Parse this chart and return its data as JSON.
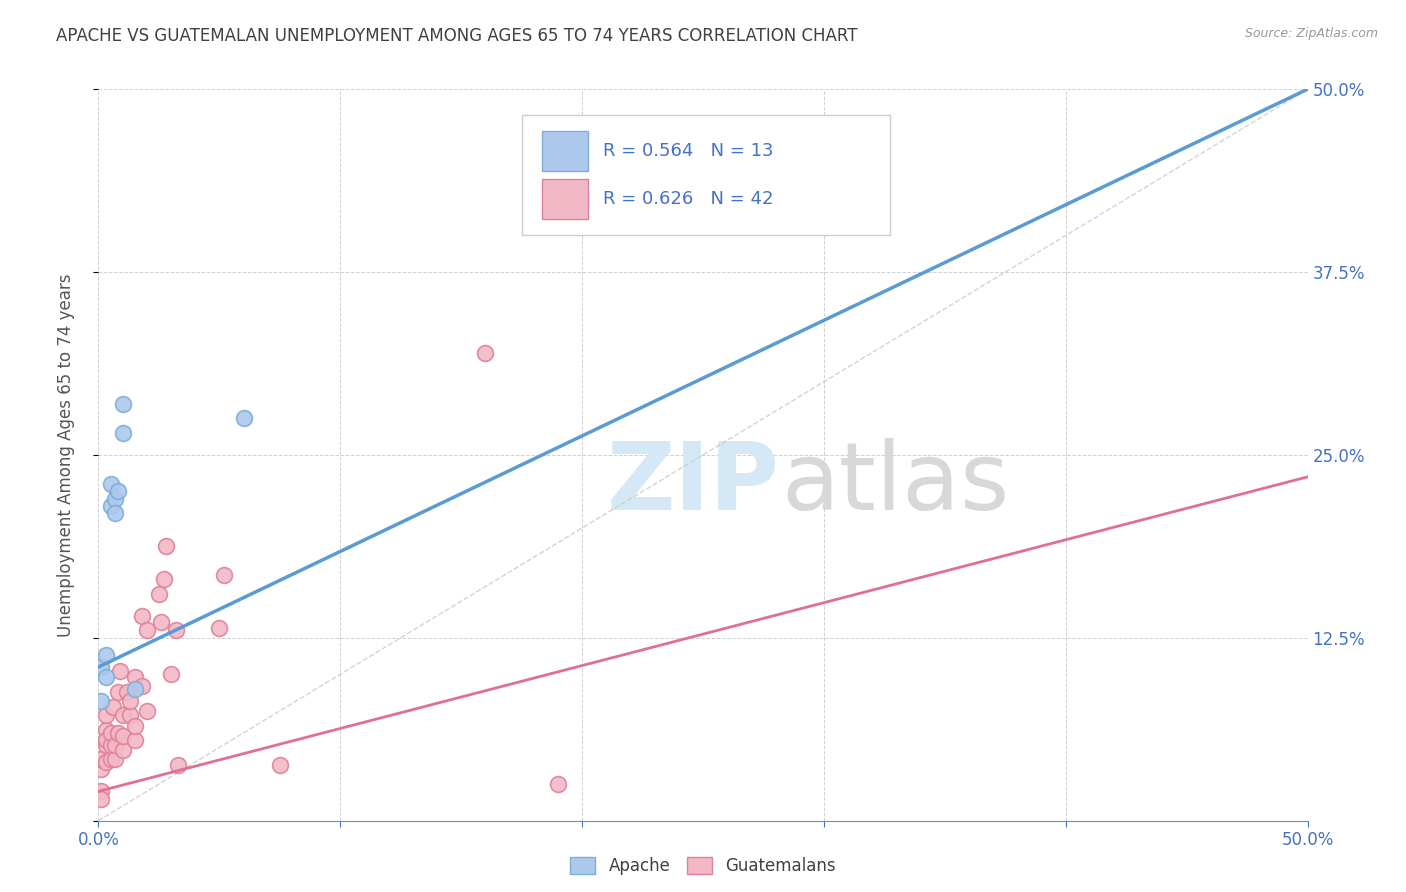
{
  "title": "APACHE VS GUATEMALAN UNEMPLOYMENT AMONG AGES 65 TO 74 YEARS CORRELATION CHART",
  "source": "Source: ZipAtlas.com",
  "ylabel": "Unemployment Among Ages 65 to 74 years",
  "xlim": [
    0.0,
    0.5
  ],
  "ylim": [
    0.0,
    0.5
  ],
  "xticks": [
    0.0,
    0.1,
    0.2,
    0.3,
    0.4,
    0.5
  ],
  "yticks": [
    0.0,
    0.125,
    0.25,
    0.375,
    0.5
  ],
  "xticklabels_visible": [
    "0.0%",
    "50.0%"
  ],
  "xticklabels_visible_pos": [
    0.0,
    0.5
  ],
  "yticklabels_right": [
    "",
    "12.5%",
    "25.0%",
    "37.5%",
    "50.0%"
  ],
  "apache_color": "#adc8ed",
  "apache_edge_color": "#7bafd4",
  "guatemalan_color": "#f2b8c6",
  "guatemalan_edge_color": "#e0809a",
  "apache_line_color": "#5b9bd5",
  "guatemalan_line_color": "#e07090",
  "diagonal_color": "#c8c8c8",
  "bottom_legend_apache": "Apache",
  "bottom_legend_guatemalan": "Guatemalans",
  "background_color": "#ffffff",
  "grid_color": "#d0d0d0",
  "title_color": "#404040",
  "axis_label_color": "#555555",
  "tick_color_right": "#4472c4",
  "tick_color_bottom": "#4472c4",
  "marker_size": 130,
  "marker_linewidth": 1.2,
  "apache_line_x0": 0.0,
  "apache_line_y0": 0.105,
  "apache_line_x1": 0.5,
  "apache_line_y1": 0.5,
  "guatemalan_line_x0": 0.0,
  "guatemalan_line_y0": 0.02,
  "guatemalan_line_x1": 0.5,
  "guatemalan_line_y1": 0.235,
  "apache_points": [
    [
      0.001,
      0.105
    ],
    [
      0.001,
      0.082
    ],
    [
      0.003,
      0.113
    ],
    [
      0.003,
      0.098
    ],
    [
      0.005,
      0.215
    ],
    [
      0.005,
      0.23
    ],
    [
      0.007,
      0.22
    ],
    [
      0.007,
      0.21
    ],
    [
      0.008,
      0.225
    ],
    [
      0.01,
      0.285
    ],
    [
      0.01,
      0.265
    ],
    [
      0.015,
      0.09
    ],
    [
      0.06,
      0.275
    ]
  ],
  "guatemalan_points": [
    [
      0.001,
      0.02
    ],
    [
      0.001,
      0.015
    ],
    [
      0.001,
      0.035
    ],
    [
      0.001,
      0.042
    ],
    [
      0.003,
      0.04
    ],
    [
      0.003,
      0.052
    ],
    [
      0.003,
      0.062
    ],
    [
      0.003,
      0.072
    ],
    [
      0.003,
      0.055
    ],
    [
      0.005,
      0.042
    ],
    [
      0.005,
      0.052
    ],
    [
      0.005,
      0.06
    ],
    [
      0.006,
      0.078
    ],
    [
      0.007,
      0.042
    ],
    [
      0.007,
      0.052
    ],
    [
      0.008,
      0.06
    ],
    [
      0.008,
      0.088
    ],
    [
      0.009,
      0.102
    ],
    [
      0.01,
      0.048
    ],
    [
      0.01,
      0.058
    ],
    [
      0.01,
      0.072
    ],
    [
      0.012,
      0.088
    ],
    [
      0.013,
      0.072
    ],
    [
      0.013,
      0.082
    ],
    [
      0.015,
      0.055
    ],
    [
      0.015,
      0.065
    ],
    [
      0.015,
      0.098
    ],
    [
      0.018,
      0.14
    ],
    [
      0.018,
      0.092
    ],
    [
      0.02,
      0.075
    ],
    [
      0.02,
      0.13
    ],
    [
      0.025,
      0.155
    ],
    [
      0.026,
      0.136
    ],
    [
      0.027,
      0.165
    ],
    [
      0.028,
      0.188
    ],
    [
      0.03,
      0.1
    ],
    [
      0.032,
      0.13
    ],
    [
      0.033,
      0.038
    ],
    [
      0.05,
      0.132
    ],
    [
      0.052,
      0.168
    ],
    [
      0.075,
      0.038
    ],
    [
      0.16,
      0.32
    ],
    [
      0.19,
      0.025
    ]
  ],
  "watermark_zip_color": "#d4e8f5",
  "watermark_atlas_color": "#d8d8d8"
}
